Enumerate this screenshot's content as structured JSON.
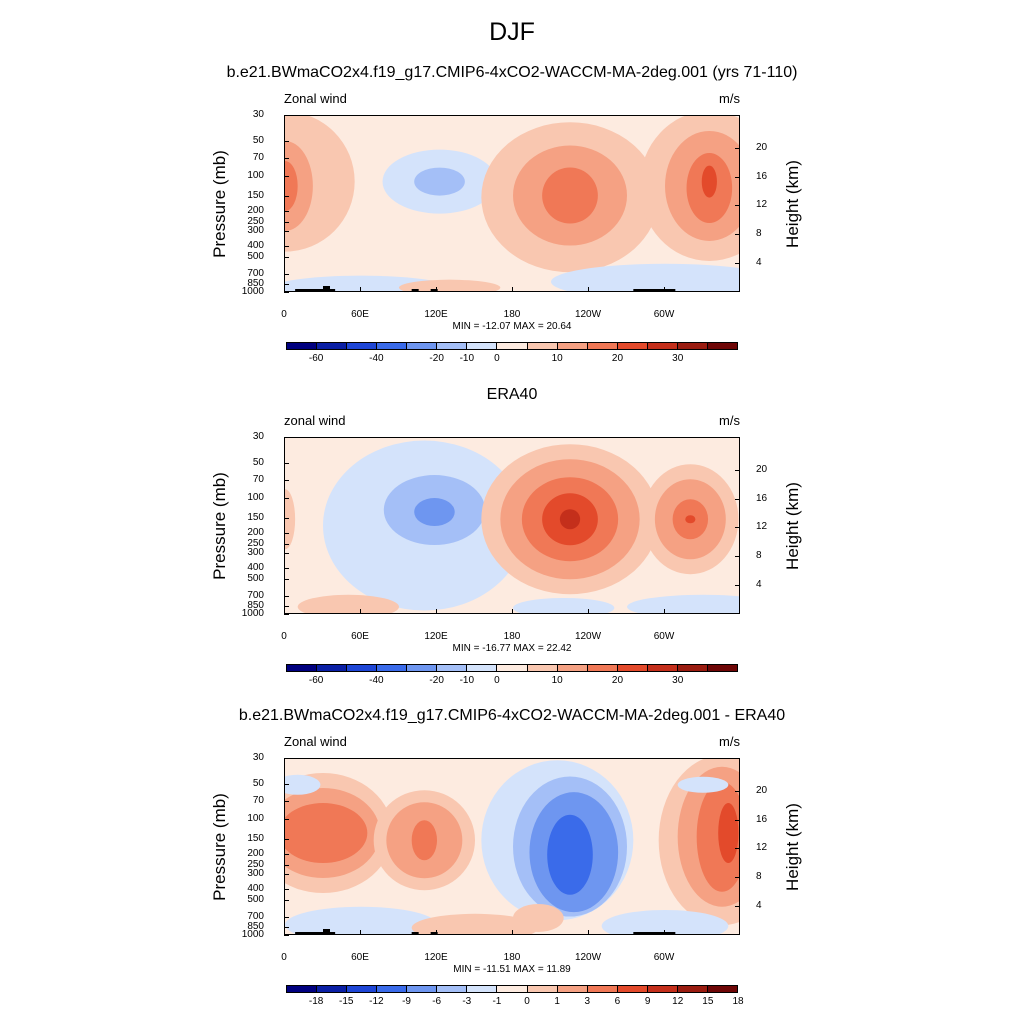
{
  "figure": {
    "title": "DJF"
  },
  "panels": [
    {
      "title": "b.e21.BWmaCO2x4.f19_g17.CMIP6-4xCO2-WACCM-MA-2deg.001 (yrs 71-110)",
      "left_label": "Zonal wind",
      "right_label": "m/s",
      "minmax": "MIN = -12.07  MAX =  20.64",
      "cbar_labels": [
        "-60",
        "-40",
        "-20",
        "-10",
        "0",
        "10",
        "20",
        "30"
      ]
    },
    {
      "title": "ERA40",
      "left_label": "zonal wind",
      "right_label": "m/s",
      "minmax": "MIN = -16.77  MAX =  22.42",
      "cbar_labels": [
        "-60",
        "-40",
        "-20",
        "-10",
        "0",
        "10",
        "20",
        "30"
      ]
    },
    {
      "title": "b.e21.BWmaCO2x4.f19_g17.CMIP6-4xCO2-WACCM-MA-2deg.001 - ERA40",
      "left_label": "Zonal wind",
      "right_label": "m/s",
      "minmax": "MIN = -11.51  MAX =  11.89",
      "cbar_labels": [
        "-18",
        "-15",
        "-12",
        "-9",
        "-6",
        "-3",
        "-1",
        "0",
        "1",
        "3",
        "6",
        "9",
        "12",
        "15",
        "18"
      ]
    }
  ],
  "axes": {
    "ylabel_left": "Pressure (mb)",
    "ylabel_right": "Height (km)",
    "pressure_ticks": [
      "30",
      "50",
      "70",
      "100",
      "150",
      "200",
      "250",
      "300",
      "400",
      "500",
      "700",
      "850",
      "1000"
    ],
    "height_ticks": [
      "20",
      "16",
      "12",
      "8",
      "4"
    ],
    "lon_ticks": [
      "0",
      "60E",
      "120E",
      "180",
      "120W",
      "60W"
    ]
  },
  "colors": {
    "fill_levels": [
      "#00007f",
      "#0a1fa5",
      "#1e46d6",
      "#3a6bea",
      "#6e96f0",
      "#a4bff7",
      "#d4e3fb",
      "#fdebe0",
      "#f9c7b0",
      "#f5a183",
      "#f07856",
      "#e34a2b",
      "#c42f1b",
      "#9a1c10",
      "#6e0606"
    ]
  },
  "chart_data": [
    {
      "type": "heatmap",
      "title": "b.e21.BWmaCO2x4.f19_g17.CMIP6-4xCO2-WACCM-MA-2deg.001 (yrs 71-110)",
      "variable": "Zonal wind",
      "units": "m/s",
      "x_axis": "longitude",
      "y_axis": "pressure (mb)",
      "y_scale": "log",
      "ylim": [
        1000,
        30
      ],
      "min": -12.07,
      "max": 20.64,
      "contour_levels": [
        -60,
        -40,
        -20,
        -10,
        0,
        10,
        20,
        30
      ],
      "features": [
        {
          "lon": 120,
          "p": 110,
          "value": -10
        },
        {
          "lon": 225,
          "p": 150,
          "value": 18
        },
        {
          "lon": 335,
          "p": 120,
          "value": 20.64
        },
        {
          "lon": 0,
          "p": 120,
          "value": 10
        }
      ]
    },
    {
      "type": "heatmap",
      "title": "ERA40",
      "variable": "zonal wind",
      "units": "m/s",
      "x_axis": "longitude",
      "y_axis": "pressure (mb)",
      "y_scale": "log",
      "ylim": [
        1000,
        30
      ],
      "min": -16.77,
      "max": 22.42,
      "contour_levels": [
        -60,
        -40,
        -20,
        -10,
        0,
        10,
        20,
        30
      ],
      "features": [
        {
          "lon": 115,
          "p": 130,
          "value": -16.77
        },
        {
          "lon": 225,
          "p": 150,
          "value": 22.42
        },
        {
          "lon": 320,
          "p": 150,
          "value": 15
        }
      ]
    },
    {
      "type": "heatmap",
      "title": "b.e21.BWmaCO2x4.f19_g17.CMIP6-4xCO2-WACCM-MA-2deg.001 - ERA40",
      "variable": "Zonal wind",
      "units": "m/s",
      "x_axis": "longitude",
      "y_axis": "pressure (mb)",
      "y_scale": "log",
      "ylim": [
        1000,
        30
      ],
      "min": -11.51,
      "max": 11.89,
      "contour_levels": [
        -18,
        -15,
        -12,
        -9,
        -6,
        -3,
        -1,
        0,
        1,
        3,
        6,
        9,
        12,
        15,
        18
      ],
      "features": [
        {
          "lon": 30,
          "p": 130,
          "value": 9
        },
        {
          "lon": 110,
          "p": 150,
          "value": 9
        },
        {
          "lon": 225,
          "p": 200,
          "value": -11.51
        },
        {
          "lon": 345,
          "p": 150,
          "value": 11.89
        }
      ]
    }
  ]
}
